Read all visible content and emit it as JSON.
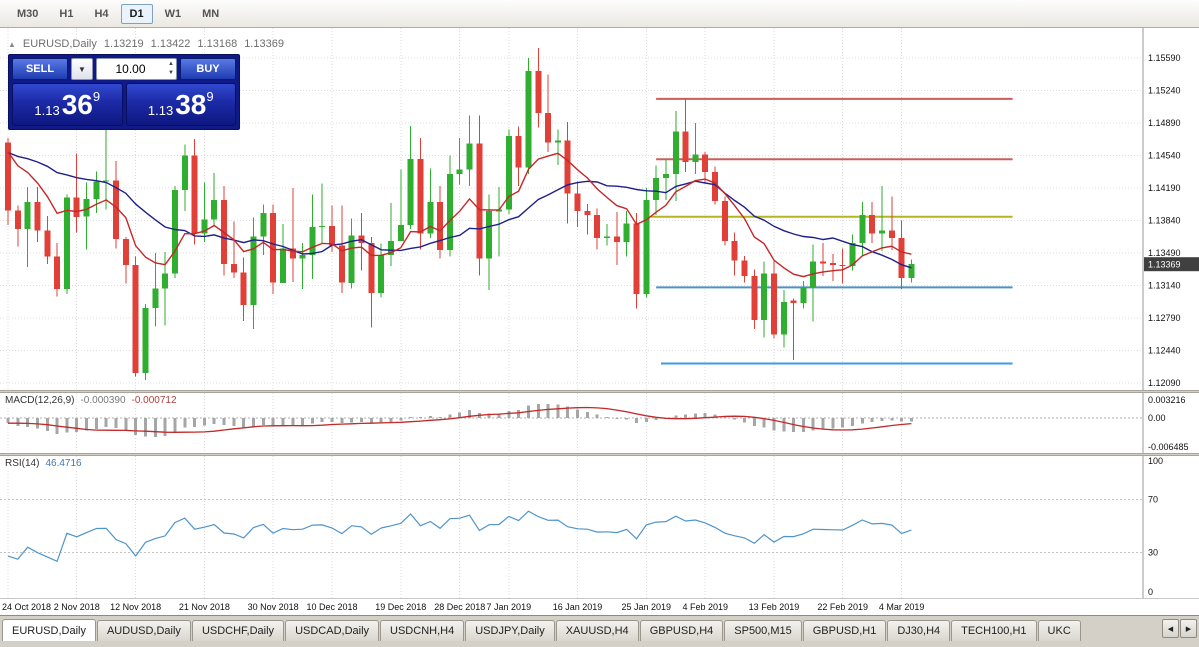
{
  "toolbar": {
    "timeframes": [
      {
        "label": "M30",
        "active": false
      },
      {
        "label": "H1",
        "active": false
      },
      {
        "label": "H4",
        "active": false
      },
      {
        "label": "D1",
        "active": true
      },
      {
        "label": "W1",
        "active": false
      },
      {
        "label": "MN",
        "active": false
      }
    ]
  },
  "chart_header": {
    "symbol": "EURUSD,Daily",
    "open": "1.13219",
    "high": "1.13422",
    "low": "1.13168",
    "close": "1.13369"
  },
  "trade_panel": {
    "sell_label": "SELL",
    "buy_label": "BUY",
    "volume": "10.00",
    "sell_price": {
      "small": "1.13",
      "big": "36",
      "sup": "9"
    },
    "buy_price": {
      "small": "1.13",
      "big": "38",
      "sup": "9"
    }
  },
  "price_axis": {
    "labels": [
      "1.15590",
      "1.15240",
      "1.14890",
      "1.14540",
      "1.14190",
      "1.13840",
      "1.13490",
      "1.13140",
      "1.12790",
      "1.12440",
      "1.12090"
    ],
    "current": "1.13369"
  },
  "macd_panel": {
    "name": "MACD(12,26,9)",
    "main_value": "-0.000390",
    "signal_value": "-0.000712",
    "axis_labels": [
      "0.003216",
      "0.00",
      "-0.006485"
    ]
  },
  "rsi_panel": {
    "name": "RSI(14)",
    "value": "46.4716",
    "axis_labels": [
      "100",
      "70",
      "30",
      "0"
    ],
    "levels": [
      70,
      30
    ]
  },
  "tabbar": {
    "tabs": [
      {
        "label": "EURUSD,Daily",
        "active": true
      },
      {
        "label": "AUDUSD,Daily",
        "active": false
      },
      {
        "label": "USDCHF,Daily",
        "active": false
      },
      {
        "label": "USDCAD,Daily",
        "active": false
      },
      {
        "label": "USDCNH,H4",
        "active": false
      },
      {
        "label": "USDJPY,Daily",
        "active": false
      },
      {
        "label": "XAUUSD,H4",
        "active": false
      },
      {
        "label": "GBPUSD,H4",
        "active": false
      },
      {
        "label": "SP500,M15",
        "active": false
      },
      {
        "label": "GBPUSD,H1",
        "active": false
      },
      {
        "label": "DJ30,H4",
        "active": false
      },
      {
        "label": "TECH100,H1",
        "active": false
      },
      {
        "label": "UKC",
        "active": false
      }
    ],
    "scroll_left": "◀",
    "scroll_right": "▶"
  },
  "colors": {
    "bull": "#2fae2f",
    "bear": "#e04038",
    "ma_slow": "#20208c",
    "ma_fast": "#c42828",
    "macd_hist": "#a6a6a6",
    "macd_signal": "#c42828",
    "rsi_line": "#4f94cd",
    "grid": "#dcdcdc",
    "level_line": "#c4c4c4",
    "badge_bg": "#404040",
    "axis_sep": "#9a9a9a"
  },
  "chart_data": {
    "type": "candlestick",
    "symbol": "EURUSD",
    "timeframe": "D1",
    "y_axis": {
      "min": 1.1209,
      "max": 1.1559,
      "step": 0.0035
    },
    "x_ticks": [
      {
        "i": 0,
        "label": "24 Oct 2018"
      },
      {
        "i": 7,
        "label": "2 Nov 2018"
      },
      {
        "i": 13,
        "label": "12 Nov 2018"
      },
      {
        "i": 20,
        "label": "21 Nov 2018"
      },
      {
        "i": 27,
        "label": "30 Nov 2018"
      },
      {
        "i": 33,
        "label": "10 Dec 2018"
      },
      {
        "i": 40,
        "label": "19 Dec 2018"
      },
      {
        "i": 46,
        "label": "28 Dec 2018"
      },
      {
        "i": 51,
        "label": "7 Jan 2019"
      },
      {
        "i": 58,
        "label": "16 Jan 2019"
      },
      {
        "i": 65,
        "label": "25 Jan 2019"
      },
      {
        "i": 71,
        "label": "4 Feb 2019"
      },
      {
        "i": 78,
        "label": "13 Feb 2019"
      },
      {
        "i": 85,
        "label": "22 Feb 2019"
      },
      {
        "i": 91,
        "label": "4 Mar 2019"
      }
    ],
    "candles": [
      [
        1.1468,
        1.1473,
        1.1379,
        1.1395
      ],
      [
        1.1395,
        1.14,
        1.1356,
        1.1375
      ],
      [
        1.1375,
        1.142,
        1.1334,
        1.1404
      ],
      [
        1.1404,
        1.142,
        1.1361,
        1.1373
      ],
      [
        1.1373,
        1.1389,
        1.1337,
        1.1345
      ],
      [
        1.1345,
        1.136,
        1.1302,
        1.131
      ],
      [
        1.131,
        1.1412,
        1.1305,
        1.1409
      ],
      [
        1.1409,
        1.1456,
        1.1371,
        1.1388
      ],
      [
        1.1388,
        1.1425,
        1.1353,
        1.1407
      ],
      [
        1.1407,
        1.1437,
        1.1392,
        1.1426
      ],
      [
        1.1426,
        1.15,
        1.1396,
        1.1427
      ],
      [
        1.1427,
        1.1448,
        1.1354,
        1.1364
      ],
      [
        1.1364,
        1.1366,
        1.1316,
        1.1336
      ],
      [
        1.1336,
        1.1345,
        1.1216,
        1.122
      ],
      [
        1.122,
        1.1294,
        1.1212,
        1.129
      ],
      [
        1.129,
        1.1349,
        1.127,
        1.1311
      ],
      [
        1.1311,
        1.135,
        1.1271,
        1.1327
      ],
      [
        1.1327,
        1.1421,
        1.1322,
        1.1417
      ],
      [
        1.1417,
        1.1466,
        1.1394,
        1.1454
      ],
      [
        1.1454,
        1.1472,
        1.1358,
        1.137
      ],
      [
        1.137,
        1.1425,
        1.1361,
        1.1385
      ],
      [
        1.1385,
        1.1435,
        1.1378,
        1.1406
      ],
      [
        1.1406,
        1.1421,
        1.1325,
        1.1337
      ],
      [
        1.1337,
        1.1383,
        1.1322,
        1.1328
      ],
      [
        1.1328,
        1.1344,
        1.1276,
        1.1293
      ],
      [
        1.1293,
        1.1387,
        1.1267,
        1.1367
      ],
      [
        1.1367,
        1.1401,
        1.1347,
        1.1392
      ],
      [
        1.1392,
        1.1401,
        1.1305,
        1.1317
      ],
      [
        1.1317,
        1.138,
        1.1317,
        1.1354
      ],
      [
        1.1354,
        1.1419,
        1.1318,
        1.1343
      ],
      [
        1.1343,
        1.136,
        1.131,
        1.1347
      ],
      [
        1.1347,
        1.1412,
        1.1321,
        1.1377
      ],
      [
        1.1377,
        1.1424,
        1.136,
        1.1378
      ],
      [
        1.1378,
        1.14,
        1.135,
        1.1357
      ],
      [
        1.1357,
        1.14,
        1.1306,
        1.1317
      ],
      [
        1.1317,
        1.1386,
        1.1311,
        1.1368
      ],
      [
        1.1368,
        1.1392,
        1.133,
        1.136
      ],
      [
        1.136,
        1.1366,
        1.1269,
        1.1306
      ],
      [
        1.1306,
        1.1359,
        1.1301,
        1.1347
      ],
      [
        1.1347,
        1.1403,
        1.1335,
        1.1362
      ],
      [
        1.1362,
        1.1439,
        1.1362,
        1.1379
      ],
      [
        1.1379,
        1.1486,
        1.1375,
        1.145
      ],
      [
        1.145,
        1.1473,
        1.1353,
        1.137
      ],
      [
        1.137,
        1.144,
        1.1365,
        1.1404
      ],
      [
        1.1404,
        1.1421,
        1.1343,
        1.1352
      ],
      [
        1.1352,
        1.1454,
        1.1345,
        1.1434
      ],
      [
        1.1434,
        1.1473,
        1.1423,
        1.1439
      ],
      [
        1.1439,
        1.1497,
        1.1421,
        1.1467
      ],
      [
        1.1467,
        1.1497,
        1.1325,
        1.1343
      ],
      [
        1.1343,
        1.1412,
        1.1309,
        1.1394
      ],
      [
        1.1394,
        1.142,
        1.1345,
        1.1396
      ],
      [
        1.1396,
        1.1482,
        1.1391,
        1.1475
      ],
      [
        1.1475,
        1.1485,
        1.1421,
        1.1441
      ],
      [
        1.1441,
        1.1559,
        1.1434,
        1.1545
      ],
      [
        1.1545,
        1.157,
        1.1484,
        1.15
      ],
      [
        1.15,
        1.1541,
        1.1458,
        1.1468
      ],
      [
        1.1468,
        1.1482,
        1.1444,
        1.147
      ],
      [
        1.147,
        1.149,
        1.1381,
        1.1413
      ],
      [
        1.1413,
        1.1426,
        1.1377,
        1.1394
      ],
      [
        1.1394,
        1.1402,
        1.1369,
        1.139
      ],
      [
        1.139,
        1.1397,
        1.1353,
        1.1365
      ],
      [
        1.1365,
        1.138,
        1.1357,
        1.1367
      ],
      [
        1.1367,
        1.1393,
        1.1336,
        1.1361
      ],
      [
        1.1361,
        1.1394,
        1.1345,
        1.1381
      ],
      [
        1.1381,
        1.1392,
        1.1289,
        1.1305
      ],
      [
        1.1305,
        1.1419,
        1.1301,
        1.1406
      ],
      [
        1.1406,
        1.1443,
        1.139,
        1.143
      ],
      [
        1.143,
        1.1451,
        1.1406,
        1.1434
      ],
      [
        1.1434,
        1.1502,
        1.1405,
        1.148
      ],
      [
        1.148,
        1.1515,
        1.1436,
        1.1447
      ],
      [
        1.1447,
        1.1489,
        1.1434,
        1.1455
      ],
      [
        1.1455,
        1.1458,
        1.1424,
        1.1436
      ],
      [
        1.1436,
        1.1442,
        1.1401,
        1.1405
      ],
      [
        1.1405,
        1.141,
        1.1357,
        1.1362
      ],
      [
        1.1362,
        1.1371,
        1.1325,
        1.1341
      ],
      [
        1.1341,
        1.1346,
        1.1317,
        1.1324
      ],
      [
        1.1324,
        1.1331,
        1.1267,
        1.1277
      ],
      [
        1.1277,
        1.134,
        1.1258,
        1.1327
      ],
      [
        1.1327,
        1.1341,
        1.1257,
        1.1261
      ],
      [
        1.1261,
        1.1309,
        1.1247,
        1.1296
      ],
      [
        1.1298,
        1.13,
        1.1234,
        1.1295
      ],
      [
        1.1295,
        1.1319,
        1.1289,
        1.1312
      ],
      [
        1.1312,
        1.1358,
        1.1275,
        1.134
      ],
      [
        1.134,
        1.136,
        1.1324,
        1.1338
      ],
      [
        1.1338,
        1.1348,
        1.1319,
        1.1336
      ],
      [
        1.1336,
        1.1354,
        1.1316,
        1.1335
      ],
      [
        1.1335,
        1.1369,
        1.133,
        1.136
      ],
      [
        1.136,
        1.1404,
        1.1345,
        1.139
      ],
      [
        1.139,
        1.1404,
        1.136,
        1.137
      ],
      [
        1.137,
        1.1421,
        1.1351,
        1.1373
      ],
      [
        1.1373,
        1.141,
        1.1352,
        1.1365
      ],
      [
        1.1365,
        1.1384,
        1.131,
        1.1322
      ],
      [
        1.1322,
        1.1342,
        1.1317,
        1.1337
      ]
    ],
    "moving_averages": [
      {
        "kind": "sma",
        "period": 20,
        "color_key": "ma_slow"
      },
      {
        "kind": "ema",
        "period": 10,
        "color_key": "ma_fast"
      }
    ],
    "hlines": [
      {
        "price": 1.1515,
        "from": 66,
        "to": 102.3,
        "color": "#cd5c5c"
      },
      {
        "price": 1.145,
        "from": 66,
        "to": 102.3,
        "color": "#cd5c5c"
      },
      {
        "price": 1.1388,
        "from": 65.5,
        "to": 102.3,
        "color": "#b5b520"
      },
      {
        "price": 1.1312,
        "from": 66,
        "to": 102.3,
        "color": "#4e91c6"
      },
      {
        "price": 1.123,
        "from": 66.5,
        "to": 102.3,
        "color": "#3f9be0"
      }
    ],
    "warmup_closes": [
      1.1528,
      1.1512,
      1.1496,
      1.1504,
      1.1484,
      1.1468,
      1.146,
      1.1452,
      1.1444,
      1.1438,
      1.1446,
      1.1458,
      1.145,
      1.1442,
      1.1454,
      1.1466,
      1.1474,
      1.146,
      1.1452,
      1.1464,
      1.1476,
      1.1482,
      1.147,
      1.1478,
      1.1484
    ],
    "indicators": {
      "macd": {
        "fast": 12,
        "slow": 26,
        "signal_period": 9
      },
      "rsi": {
        "period": 14
      }
    }
  }
}
